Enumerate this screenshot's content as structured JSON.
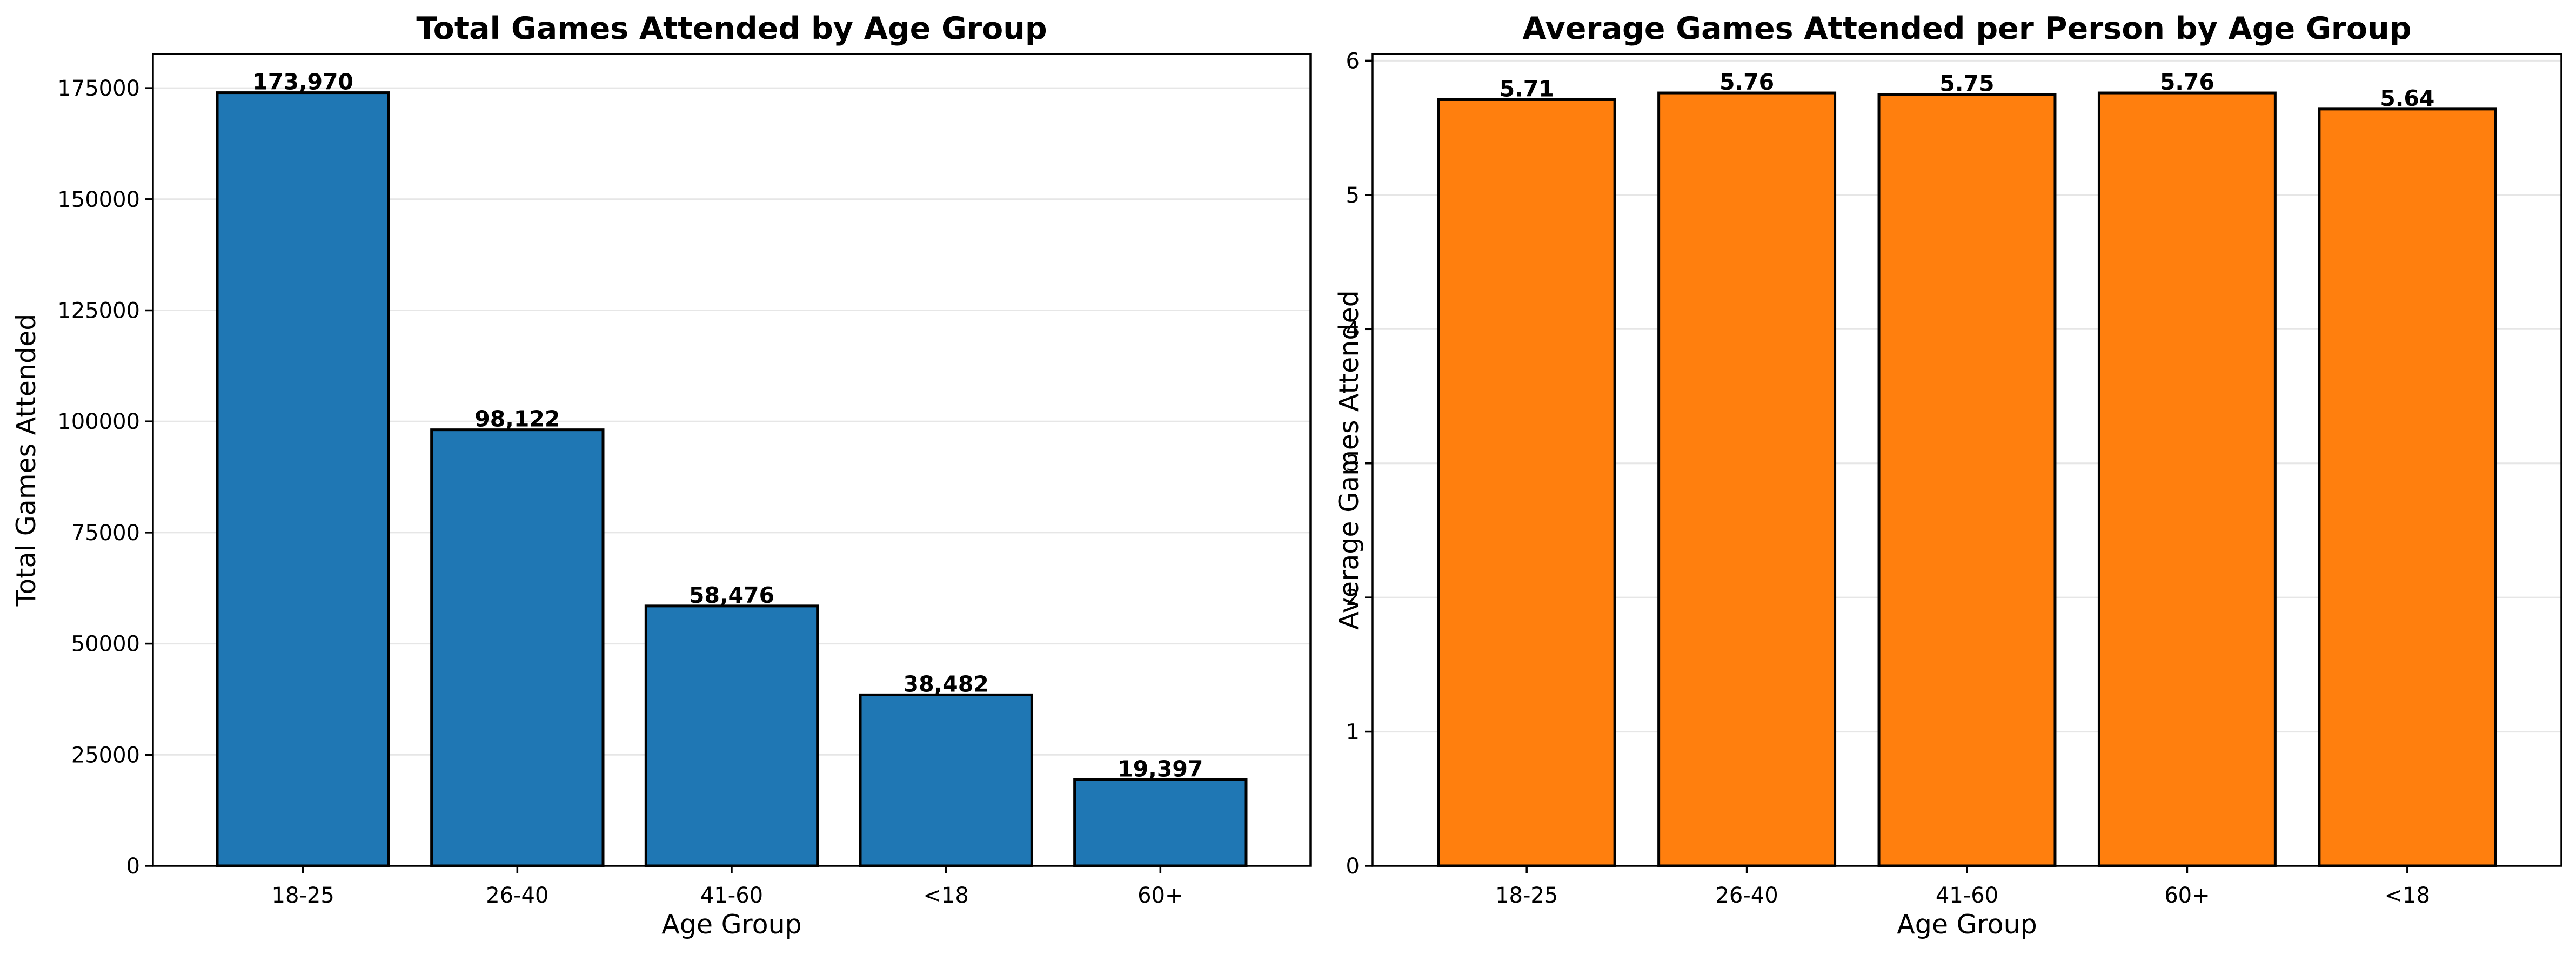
{
  "chart_data": [
    {
      "type": "bar",
      "title": "Total Games Attended by Age Group",
      "xlabel": "Age Group",
      "ylabel": "Total Games Attended",
      "categories": [
        "18-25",
        "26-40",
        "41-60",
        "<18",
        "60+"
      ],
      "values": [
        173970,
        98122,
        58476,
        38482,
        19397
      ],
      "value_labels": [
        "173,970",
        "98,122",
        "58,476",
        "38,482",
        "19,397"
      ],
      "ylim": [
        0,
        182669
      ],
      "yticks": [
        0,
        25000,
        50000,
        75000,
        100000,
        125000,
        150000,
        175000
      ],
      "ytick_labels": [
        "0",
        "25000",
        "50000",
        "75000",
        "100000",
        "125000",
        "150000",
        "175000"
      ],
      "grid": "y",
      "color": "#1f77b4"
    },
    {
      "type": "bar",
      "title": "Average Games Attended per Person by Age Group",
      "xlabel": "Age Group",
      "ylabel": "Average Games Attended",
      "categories": [
        "18-25",
        "26-40",
        "41-60",
        "60+",
        "<18"
      ],
      "values": [
        5.71,
        5.76,
        5.75,
        5.76,
        5.64
      ],
      "value_labels": [
        "5.71",
        "5.76",
        "5.75",
        "5.76",
        "5.64"
      ],
      "ylim": [
        0,
        6.05
      ],
      "yticks": [
        0,
        1,
        2,
        3,
        4,
        5,
        6
      ],
      "ytick_labels": [
        "0",
        "1",
        "2",
        "3",
        "4",
        "5",
        "6"
      ],
      "grid": "y",
      "color": "#ff7f0e"
    }
  ]
}
